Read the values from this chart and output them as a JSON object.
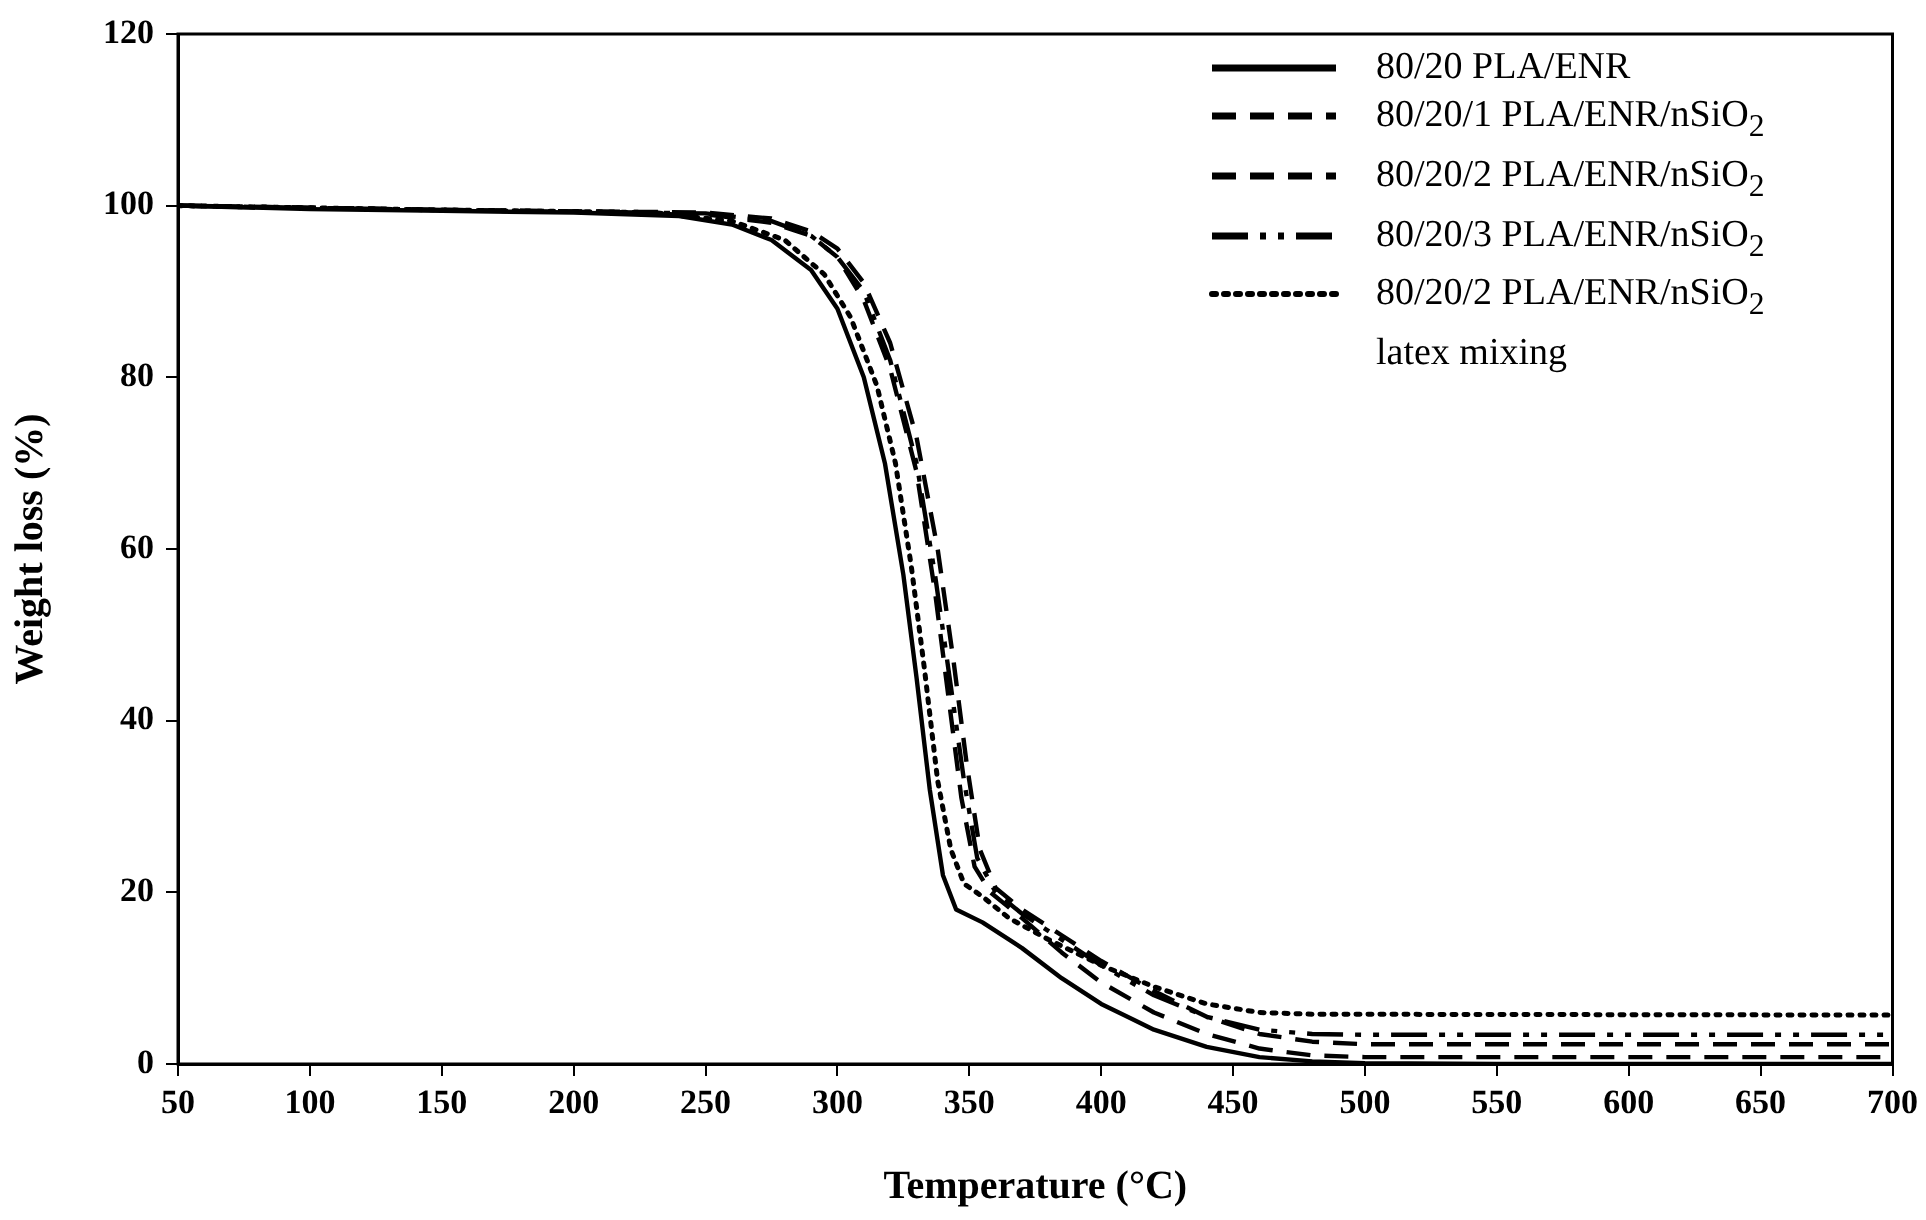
{
  "chart_data": {
    "type": "line",
    "xlabel": "Temperature (°C)",
    "ylabel": "Weight loss (%)",
    "xlim": [
      50,
      700
    ],
    "ylim": [
      0,
      120
    ],
    "xticks": [
      50,
      100,
      150,
      200,
      250,
      300,
      350,
      400,
      450,
      500,
      550,
      600,
      650,
      700
    ],
    "yticks": [
      0,
      20,
      40,
      60,
      80,
      100,
      120
    ],
    "grid": false,
    "legend": "top right",
    "marker": "none",
    "series": [
      {
        "name": "80/20  PLA/ENR",
        "color": "#000000",
        "line_style": "solid",
        "x": [
          50,
          100,
          150,
          200,
          240,
          260,
          275,
          290,
          300,
          310,
          318,
          325,
          330,
          335,
          340,
          345,
          355,
          370,
          385,
          400,
          420,
          440,
          460,
          480,
          500,
          550,
          700
        ],
        "values": [
          100,
          99.6,
          99.4,
          99.2,
          98.8,
          97.8,
          96,
          92.5,
          88,
          80,
          70,
          57,
          45,
          32,
          22,
          18,
          16.5,
          13.5,
          10,
          7,
          4,
          2,
          0.8,
          0.3,
          0.1,
          0,
          0
        ]
      },
      {
        "name": "80/20/1  PLA/ENR/nSiO$_{2}$",
        "color": "#000000",
        "line_style": "dashed",
        "x": [
          50,
          150,
          200,
          250,
          275,
          290,
          300,
          310,
          320,
          330,
          337,
          342,
          347,
          352,
          358,
          370,
          385,
          400,
          420,
          440,
          460,
          480,
          500,
          700
        ],
        "values": [
          100,
          99.5,
          99.3,
          99,
          98,
          96.5,
          94,
          89,
          81,
          69,
          55,
          43,
          31,
          23,
          20,
          17,
          13,
          9.5,
          6,
          3.5,
          1.8,
          1,
          0.8,
          0.8
        ]
      },
      {
        "name": "80/20/2  PLA/ENR/nSiO$_{2}$",
        "color": "#000000",
        "line_style": "dashed",
        "x": [
          50,
          150,
          250,
          275,
          290,
          300,
          310,
          320,
          330,
          338,
          344,
          349,
          354,
          360,
          370,
          385,
          400,
          420,
          440,
          460,
          480,
          500,
          700
        ],
        "values": [
          100,
          99.5,
          99.2,
          98.5,
          97,
          95,
          91,
          84,
          73,
          60,
          47,
          35,
          25,
          20.5,
          18,
          15,
          12,
          8.5,
          5.5,
          3.5,
          2.6,
          2.3,
          2.3
        ]
      },
      {
        "name": "80/20/3  PLA/ENR/nSiO$_{2}$",
        "color": "#000000",
        "line_style": "dashdot",
        "x": [
          50,
          150,
          250,
          275,
          290,
          300,
          310,
          320,
          330,
          337,
          343,
          348,
          353,
          360,
          370,
          385,
          400,
          420,
          440,
          460,
          480,
          500,
          700
        ],
        "values": [
          100,
          99.5,
          99.1,
          98.2,
          96.5,
          94,
          90,
          82,
          70,
          57,
          44,
          33,
          24,
          20,
          17.5,
          14.5,
          11.5,
          8,
          5.5,
          4,
          3.5,
          3.4,
          3.4
        ]
      },
      {
        "name": "80/20/2  PLA/ENR/nSiO$_{2}$ latex mixing",
        "color": "#000000",
        "line_style": "dotted",
        "x": [
          50,
          150,
          230,
          260,
          280,
          295,
          305,
          315,
          322,
          328,
          333,
          338,
          343,
          348,
          355,
          365,
          380,
          400,
          420,
          440,
          460,
          480,
          700
        ],
        "values": [
          100,
          99.5,
          99.2,
          98.2,
          96,
          92,
          87,
          79,
          70,
          58,
          46,
          33,
          25,
          21,
          19.5,
          17,
          14.5,
          11.5,
          9,
          7,
          6,
          5.8,
          5.7
        ]
      }
    ]
  }
}
